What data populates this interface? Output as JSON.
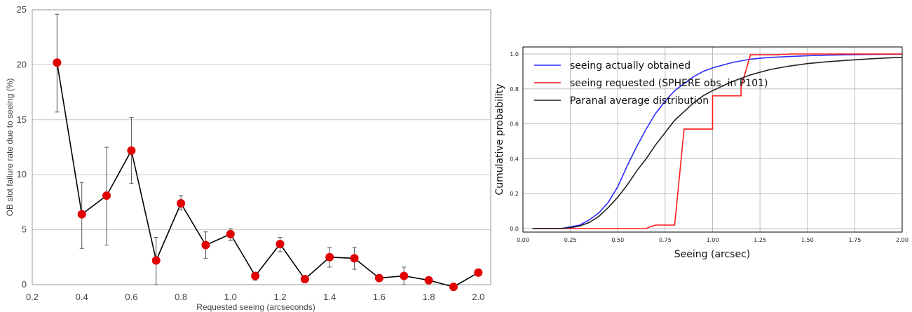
{
  "chart_data": [
    {
      "type": "line",
      "title": "",
      "xlabel": "Requested seeing (arcseconds)",
      "ylabel": "OB slot failure rate due to seeing (%)",
      "xlim": [
        0.2,
        2.05
      ],
      "ylim": [
        0,
        25
      ],
      "xticks": [
        "0.2",
        "0.4",
        "0.6",
        "0.8",
        "1.0",
        "1.2",
        "1.4",
        "1.6",
        "1.8",
        "2.0"
      ],
      "yticks": [
        "0",
        "5",
        "10",
        "15",
        "20",
        "25"
      ],
      "grid": "horizontal",
      "series": [
        {
          "color": "#e00000",
          "line_color": "#000000",
          "x": [
            0.3,
            0.4,
            0.5,
            0.6,
            0.7,
            0.8,
            0.9,
            1.0,
            1.1,
            1.2,
            1.3,
            1.4,
            1.5,
            1.6,
            1.7,
            1.8,
            1.9,
            2.0
          ],
          "y": [
            20.2,
            6.4,
            8.1,
            12.2,
            2.2,
            7.4,
            3.6,
            4.6,
            0.8,
            3.7,
            0.5,
            2.5,
            2.4,
            0.6,
            0.8,
            0.4,
            -0.2,
            1.1
          ],
          "err_low": [
            15.7,
            3.3,
            3.6,
            9.2,
            0.0,
            6.8,
            2.4,
            4.0,
            0.4,
            3.0,
            0.3,
            1.6,
            1.4,
            0.3,
            0.0,
            0.2,
            -0.3,
            0.9
          ],
          "err_high": [
            24.6,
            9.3,
            12.5,
            15.2,
            4.3,
            8.1,
            4.8,
            5.1,
            1.1,
            4.3,
            0.7,
            3.4,
            3.4,
            0.9,
            1.6,
            0.6,
            -0.1,
            1.3
          ]
        }
      ]
    },
    {
      "type": "line",
      "title": "",
      "xlabel": "Seeing (arcsec)",
      "ylabel": "Cumulative probability",
      "xlim": [
        0,
        2
      ],
      "ylim": [
        -0.02,
        1.04
      ],
      "xticks": [
        "0.00",
        "0.25",
        "0.50",
        "0.75",
        "1.00",
        "1.25",
        "1.50",
        "1.75",
        "2.00"
      ],
      "yticks": [
        "0.0",
        "0.2",
        "0.4",
        "0.6",
        "0.8",
        "1.0"
      ],
      "grid": "on",
      "legend": "top-left",
      "series": [
        {
          "name": "seeing actually obtained",
          "color": "#2b2bff",
          "x": [
            0.05,
            0.2,
            0.25,
            0.3,
            0.35,
            0.4,
            0.45,
            0.5,
            0.55,
            0.6,
            0.65,
            0.7,
            0.75,
            0.8,
            0.85,
            0.9,
            0.95,
            1.0,
            1.1,
            1.2,
            1.3,
            1.4,
            1.5,
            1.6,
            1.7,
            1.8,
            1.9,
            2.0
          ],
          "y": [
            0.0,
            0.0,
            0.01,
            0.02,
            0.05,
            0.09,
            0.15,
            0.24,
            0.36,
            0.47,
            0.57,
            0.66,
            0.73,
            0.79,
            0.83,
            0.87,
            0.9,
            0.92,
            0.95,
            0.97,
            0.98,
            0.985,
            0.99,
            0.993,
            0.995,
            0.997,
            0.998,
            0.999
          ]
        },
        {
          "name": "seeing requested (SPHERE obs. in P101)",
          "color": "#ff1a1a",
          "x": [
            0.05,
            0.65,
            0.67,
            0.7,
            0.8,
            0.85,
            0.85,
            1.0,
            1.0,
            1.05,
            1.05,
            1.15,
            1.15,
            1.2,
            1.2,
            1.35,
            1.35,
            1.4,
            1.4,
            2.0
          ],
          "y": [
            0.0,
            0.0,
            0.01,
            0.02,
            0.02,
            0.57,
            0.57,
            0.57,
            0.76,
            0.76,
            0.76,
            0.76,
            0.81,
            0.995,
            0.995,
            0.995,
            0.998,
            0.998,
            1.0,
            1.0
          ]
        },
        {
          "name": "Paranal average distribution",
          "color": "#222222",
          "x": [
            0.05,
            0.2,
            0.25,
            0.3,
            0.35,
            0.4,
            0.45,
            0.5,
            0.55,
            0.6,
            0.65,
            0.7,
            0.75,
            0.8,
            0.85,
            0.9,
            0.95,
            1.0,
            1.1,
            1.2,
            1.3,
            1.4,
            1.5,
            1.6,
            1.7,
            1.8,
            1.9,
            2.0
          ],
          "y": [
            0.0,
            0.0,
            0.005,
            0.015,
            0.035,
            0.07,
            0.12,
            0.18,
            0.25,
            0.33,
            0.4,
            0.48,
            0.55,
            0.62,
            0.67,
            0.72,
            0.76,
            0.79,
            0.84,
            0.88,
            0.91,
            0.93,
            0.945,
            0.955,
            0.963,
            0.97,
            0.976,
            0.981
          ]
        }
      ]
    }
  ]
}
